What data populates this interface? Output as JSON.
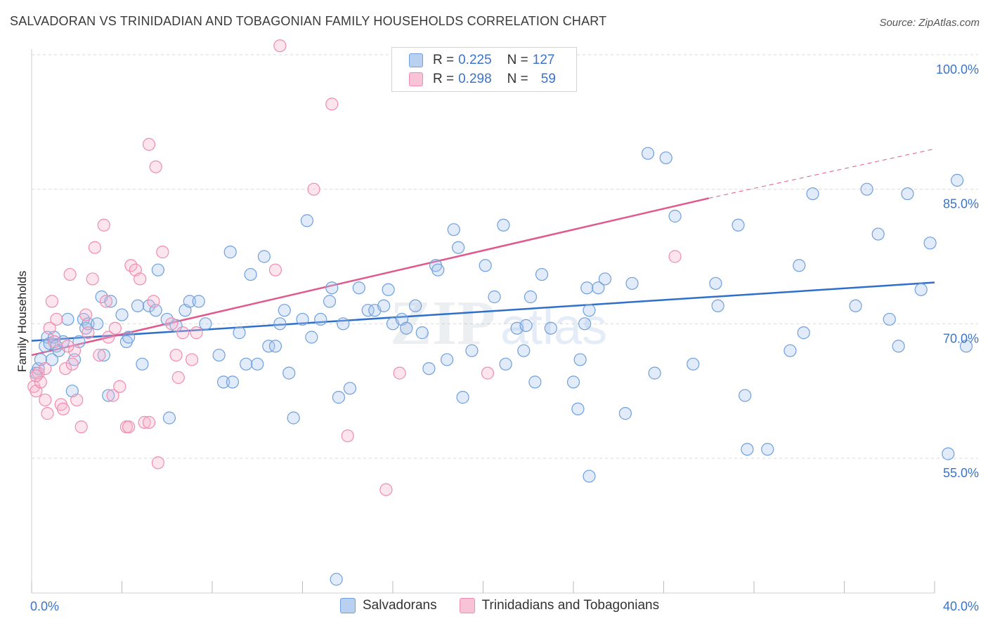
{
  "title": "SALVADORAN VS TRINIDADIAN AND TOBAGONIAN FAMILY HOUSEHOLDS CORRELATION CHART",
  "source": "Source: ZipAtlas.com",
  "colors": {
    "blue": "#6fa0dc",
    "blue_line": "#2f6fcc",
    "pink": "#f08cb0",
    "pink_line": "#e0588c",
    "axis_text": "#3b74c8"
  },
  "legend": {
    "rows": [
      {
        "r_label": "R =",
        "r_value": "0.225",
        "n_label": "N =",
        "n_value": "127"
      },
      {
        "r_label": "R =",
        "r_value": "0.298",
        "n_label": "N =",
        "n_value": "59"
      }
    ]
  },
  "bottom_legend": [
    "Salvadorans",
    "Trinidadians and Tobagonians"
  ],
  "chart_data": {
    "type": "scatter",
    "ylabel": "Family Households",
    "xlabel": "",
    "xlim": [
      0,
      40
    ],
    "ylim": [
      41,
      102
    ],
    "x_tick_labels": [
      "0.0%",
      "40.0%"
    ],
    "y_tick_labels": [
      "100.0%",
      "85.0%",
      "70.0%",
      "55.0%"
    ],
    "y_ticks": [
      100,
      85,
      70,
      55
    ],
    "grid": "horizontal dashed",
    "series": [
      {
        "name": "Salvadorans",
        "color": "#6fa0dc",
        "trend": {
          "x0": 0,
          "y0": 68.1,
          "x1": 40,
          "y1": 74.6
        },
        "points": [
          [
            0.2,
            64.5
          ],
          [
            0.3,
            65
          ],
          [
            0.4,
            66
          ],
          [
            0.6,
            67.5
          ],
          [
            0.7,
            68.5
          ],
          [
            0.8,
            67.8
          ],
          [
            0.9,
            66
          ],
          [
            1.0,
            68.5
          ],
          [
            1.1,
            67.5
          ],
          [
            1.2,
            67
          ],
          [
            1.4,
            68
          ],
          [
            1.6,
            70.5
          ],
          [
            1.8,
            62.5
          ],
          [
            1.9,
            66
          ],
          [
            2.1,
            68
          ],
          [
            2.3,
            70.5
          ],
          [
            2.4,
            69.5
          ],
          [
            2.5,
            70
          ],
          [
            2.9,
            70
          ],
          [
            3.1,
            73
          ],
          [
            3.2,
            66.5
          ],
          [
            3.4,
            62
          ],
          [
            3.5,
            72.5
          ],
          [
            4.0,
            71
          ],
          [
            4.2,
            68
          ],
          [
            4.3,
            68.5
          ],
          [
            4.7,
            72
          ],
          [
            4.9,
            65.5
          ],
          [
            5.2,
            72
          ],
          [
            5.5,
            71.5
          ],
          [
            5.6,
            76
          ],
          [
            6.0,
            70.5
          ],
          [
            6.1,
            59.5
          ],
          [
            6.4,
            69.8
          ],
          [
            6.8,
            71.5
          ],
          [
            7.0,
            72.5
          ],
          [
            7.4,
            72.5
          ],
          [
            7.7,
            70
          ],
          [
            8.3,
            66.5
          ],
          [
            8.5,
            63.5
          ],
          [
            8.9,
            63.5
          ],
          [
            8.8,
            78
          ],
          [
            9.2,
            69
          ],
          [
            9.5,
            65.5
          ],
          [
            9.7,
            75.5
          ],
          [
            10.0,
            65.5
          ],
          [
            10.3,
            77.5
          ],
          [
            10.5,
            67.5
          ],
          [
            10.8,
            67.5
          ],
          [
            11.0,
            70
          ],
          [
            11.2,
            71.5
          ],
          [
            11.4,
            64.5
          ],
          [
            11.6,
            59.5
          ],
          [
            12.0,
            70.5
          ],
          [
            12.2,
            81.5
          ],
          [
            12.4,
            68.5
          ],
          [
            12.8,
            70.5
          ],
          [
            13.2,
            72.5
          ],
          [
            13.3,
            74
          ],
          [
            13.6,
            61.8
          ],
          [
            13.8,
            70
          ],
          [
            14.1,
            62.8
          ],
          [
            14.5,
            74
          ],
          [
            14.9,
            71.5
          ],
          [
            15.2,
            71.5
          ],
          [
            13.5,
            41.5
          ],
          [
            15.6,
            72
          ],
          [
            16.0,
            70
          ],
          [
            16.4,
            70.5
          ],
          [
            16.6,
            69.5
          ],
          [
            15.8,
            73.8
          ],
          [
            17.0,
            72
          ],
          [
            17.3,
            69
          ],
          [
            17.9,
            76.5
          ],
          [
            17.6,
            65
          ],
          [
            18.0,
            76
          ],
          [
            18.4,
            66
          ],
          [
            18.7,
            80.5
          ],
          [
            18.9,
            78.5
          ],
          [
            19.1,
            61.8
          ],
          [
            19.5,
            67
          ],
          [
            20.1,
            76.5
          ],
          [
            20.5,
            73
          ],
          [
            20.9,
            81
          ],
          [
            21.0,
            65.5
          ],
          [
            21.5,
            69.5
          ],
          [
            21.8,
            67
          ],
          [
            21.9,
            69.8
          ],
          [
            22.1,
            73
          ],
          [
            22.3,
            63.5
          ],
          [
            22.6,
            75.5
          ],
          [
            23.0,
            69.5
          ],
          [
            24.0,
            63.5
          ],
          [
            24.2,
            60.5
          ],
          [
            24.3,
            66
          ],
          [
            24.5,
            70
          ],
          [
            24.6,
            74
          ],
          [
            24.7,
            71.5
          ],
          [
            24.7,
            53
          ],
          [
            25.1,
            74
          ],
          [
            25.4,
            75
          ],
          [
            26.3,
            60
          ],
          [
            26.6,
            74.5
          ],
          [
            27.3,
            89
          ],
          [
            27.6,
            64.5
          ],
          [
            28.1,
            88.5
          ],
          [
            28.5,
            82
          ],
          [
            29.3,
            65.5
          ],
          [
            30.3,
            74.5
          ],
          [
            30.4,
            72
          ],
          [
            31.3,
            81
          ],
          [
            31.6,
            62
          ],
          [
            31.7,
            56
          ],
          [
            32.6,
            56
          ],
          [
            33.6,
            67
          ],
          [
            34.0,
            76.5
          ],
          [
            34.2,
            69
          ],
          [
            34.6,
            84.5
          ],
          [
            36.5,
            72
          ],
          [
            37.0,
            85
          ],
          [
            37.5,
            80
          ],
          [
            38.0,
            70.5
          ],
          [
            38.4,
            67.5
          ],
          [
            38.8,
            84.5
          ],
          [
            39.4,
            73.8
          ],
          [
            39.8,
            79
          ],
          [
            41.0,
            86
          ],
          [
            40.6,
            55.5
          ],
          [
            41.4,
            67.5
          ]
        ]
      },
      {
        "name": "Trinidadians and Tobagonians",
        "color": "#f08cb0",
        "trend": {
          "x0": 0,
          "y0": 66.5,
          "x1": 30,
          "y1": 84
        },
        "trend_dashed": {
          "x0": 30,
          "y0": 84,
          "x1": 40,
          "y1": 89.5
        },
        "points": [
          [
            0.1,
            63
          ],
          [
            0.2,
            62.5
          ],
          [
            0.3,
            64.5
          ],
          [
            0.4,
            63.5
          ],
          [
            0.6,
            65
          ],
          [
            0.6,
            61.5
          ],
          [
            0.7,
            60
          ],
          [
            0.8,
            69.5
          ],
          [
            0.9,
            72.5
          ],
          [
            1.0,
            68
          ],
          [
            1.1,
            70.5
          ],
          [
            1.3,
            61
          ],
          [
            1.4,
            60.5
          ],
          [
            1.5,
            65
          ],
          [
            1.7,
            75.5
          ],
          [
            1.8,
            65.5
          ],
          [
            1.9,
            67
          ],
          [
            2.0,
            61.5
          ],
          [
            2.2,
            58.5
          ],
          [
            2.4,
            71
          ],
          [
            2.5,
            69
          ],
          [
            2.7,
            75
          ],
          [
            2.8,
            78.5
          ],
          [
            3.0,
            66.5
          ],
          [
            3.2,
            81
          ],
          [
            3.3,
            72.5
          ],
          [
            3.4,
            68.5
          ],
          [
            3.6,
            62
          ],
          [
            3.9,
            63
          ],
          [
            4.2,
            58.5
          ],
          [
            4.3,
            58.5
          ],
          [
            4.4,
            76.5
          ],
          [
            4.6,
            76
          ],
          [
            4.8,
            75
          ],
          [
            5.0,
            59
          ],
          [
            5.2,
            59
          ],
          [
            5.2,
            90
          ],
          [
            5.4,
            72.5
          ],
          [
            5.5,
            87.5
          ],
          [
            5.6,
            54.5
          ],
          [
            5.8,
            78
          ],
          [
            6.2,
            70
          ],
          [
            6.4,
            66.5
          ],
          [
            6.5,
            64
          ],
          [
            6.7,
            69
          ],
          [
            7.1,
            66
          ],
          [
            7.3,
            69
          ],
          [
            10.8,
            76
          ],
          [
            11.0,
            101
          ],
          [
            12.5,
            85
          ],
          [
            13.3,
            94.5
          ],
          [
            14.0,
            57.5
          ],
          [
            15.7,
            51.5
          ],
          [
            16.3,
            64.5
          ],
          [
            20.2,
            64.5
          ],
          [
            28.5,
            77.5
          ],
          [
            0.2,
            64.2
          ],
          [
            1.6,
            67.5
          ],
          [
            3.7,
            69.5
          ]
        ]
      }
    ]
  }
}
